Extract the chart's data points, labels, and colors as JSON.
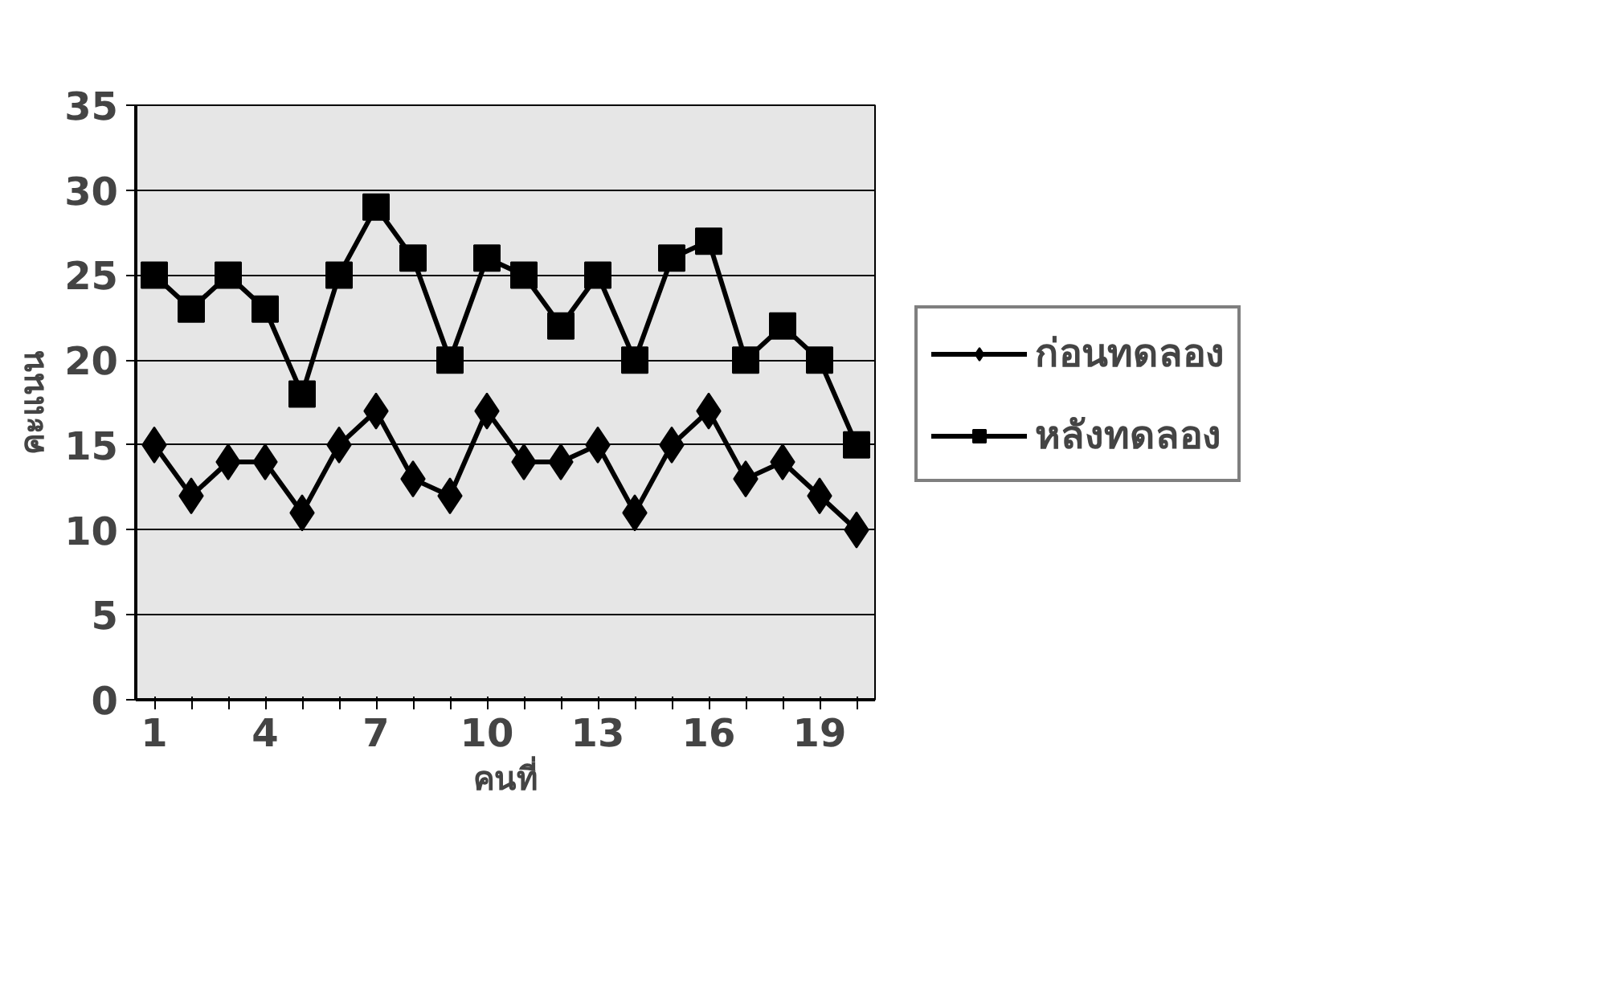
{
  "chart_data": {
    "type": "line",
    "xlabel": "คนที่",
    "ylabel": "คะแนน",
    "x": [
      1,
      2,
      3,
      4,
      5,
      6,
      7,
      8,
      9,
      10,
      11,
      12,
      13,
      14,
      15,
      16,
      17,
      18,
      19,
      20
    ],
    "series": [
      {
        "name": "ก่อนทดลอง",
        "color": "#000000",
        "marker": "diamond",
        "values": [
          15,
          12,
          14,
          14,
          11,
          15,
          17,
          13,
          12,
          17,
          14,
          14,
          15,
          11,
          15,
          17,
          13,
          14,
          12,
          10
        ]
      },
      {
        "name": "หลังทดลอง",
        "color": "#000000",
        "marker": "square",
        "values": [
          25,
          23,
          25,
          23,
          18,
          25,
          29,
          26,
          20,
          26,
          25,
          22,
          25,
          20,
          26,
          27,
          20,
          22,
          20,
          15
        ]
      }
    ],
    "xlim": [
      0.5,
      20.5
    ],
    "xticks": [
      1,
      {
        "value": 2,
        "label": null
      },
      {
        "value": 3,
        "label": null
      },
      4,
      {
        "value": 5,
        "label": null
      },
      {
        "value": 6,
        "label": null
      },
      7,
      {
        "value": 8,
        "label": null
      },
      {
        "value": 9,
        "label": null
      },
      10,
      {
        "value": 11,
        "label": null
      },
      {
        "value": 12,
        "label": null
      },
      13,
      {
        "value": 14,
        "label": null
      },
      {
        "value": 15,
        "label": null
      },
      16,
      {
        "value": 17,
        "label": null
      },
      {
        "value": 18,
        "label": null
      },
      19,
      {
        "value": 20,
        "label": null
      }
    ],
    "ylim": [
      0,
      35
    ],
    "yticks": [
      0,
      5,
      10,
      15,
      20,
      25,
      30,
      35
    ],
    "grid": "y",
    "legend": "right",
    "line_style": "solid"
  }
}
